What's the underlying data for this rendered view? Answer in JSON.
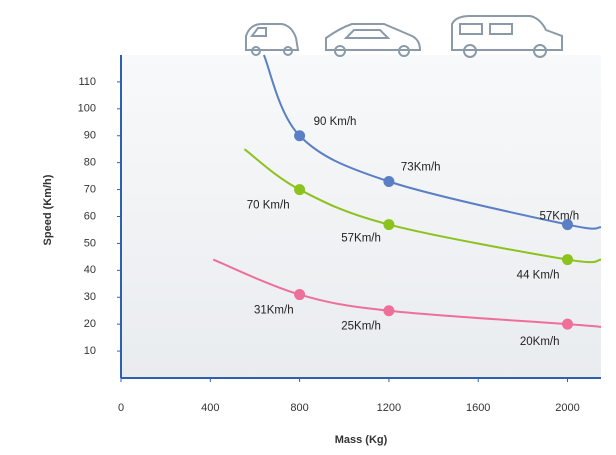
{
  "chart_data": {
    "type": "line",
    "x_label": "Mass (Kg)",
    "y_label": "Speed (Km/h)",
    "xlim": [
      0,
      2150
    ],
    "xticks": [
      0,
      400,
      800,
      1200,
      1600,
      2000
    ],
    "ylim": [
      0,
      120
    ],
    "yticks": [
      10,
      20,
      30,
      40,
      50,
      60,
      70,
      80,
      90,
      100,
      110
    ],
    "series": [
      {
        "color": "#5a7fc4",
        "x": [
          640,
          800,
          1200,
          2000,
          2150
        ],
        "values": [
          120,
          90,
          73,
          57,
          56
        ],
        "value_labels": [
          null,
          "90 Km/h",
          "73Km/h",
          "57Km/h",
          null
        ]
      },
      {
        "color": "#8cc21e",
        "x": [
          553,
          800,
          1200,
          2000,
          2150
        ],
        "values": [
          85,
          70,
          57,
          44,
          44
        ],
        "value_labels": [
          null,
          "70 Km/h",
          "57Km/h",
          "44 Km/h",
          null
        ]
      },
      {
        "color": "#ee6f9a",
        "x": [
          413,
          800,
          1200,
          2000,
          2150
        ],
        "values": [
          44,
          31,
          25,
          20,
          19
        ],
        "value_labels": [
          null,
          "31Km/h",
          "25Km/h",
          "20Km/h",
          null
        ]
      }
    ]
  }
}
